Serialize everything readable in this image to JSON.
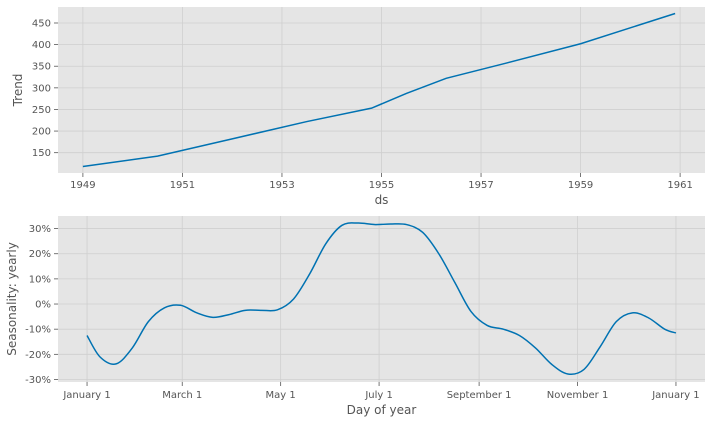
{
  "chart_data": [
    {
      "type": "line",
      "title": "",
      "xlabel": "ds",
      "ylabel": "Trend",
      "grid": true,
      "x_ticks": [
        "1949",
        "1951",
        "1953",
        "1955",
        "1957",
        "1959",
        "1961"
      ],
      "y_ticks": [
        "150",
        "200",
        "250",
        "300",
        "350",
        "400",
        "450"
      ],
      "xlim": [
        1948.5,
        1961.5
      ],
      "ylim": [
        103,
        487
      ],
      "line_color": "#0072B2",
      "background_color": "#E5E5E5",
      "series": [
        {
          "x": [
            1949.0,
            1950.5,
            1952.0,
            1953.5,
            1954.8,
            1955.5,
            1956.3,
            1957.5,
            1959.0,
            1960.9
          ],
          "y": [
            118,
            142,
            182,
            222,
            253,
            287,
            322,
            357,
            402,
            472
          ]
        }
      ]
    },
    {
      "type": "line",
      "title": "",
      "xlabel": "Day of year",
      "ylabel": "Seasonality: yearly",
      "grid": true,
      "x_ticks": [
        "January 1",
        "March 1",
        "May 1",
        "July 1",
        "September 1",
        "November 1",
        "January 1"
      ],
      "x_tick_days": [
        0,
        59,
        120,
        181,
        243,
        304,
        365
      ],
      "y_ticks": [
        "-30%",
        "-20%",
        "-10%",
        "0%",
        "10%",
        "20%",
        "30%"
      ],
      "xlim": [
        -18,
        383
      ],
      "ylim": [
        -31,
        35
      ],
      "line_color": "#0072B2",
      "background_color": "#E5E5E5",
      "series": [
        {
          "x": [
            0,
            8,
            18,
            28,
            38,
            48,
            58,
            68,
            78,
            88,
            98,
            108,
            118,
            128,
            138,
            148,
            158,
            168,
            178,
            188,
            198,
            208,
            218,
            228,
            238,
            248,
            258,
            268,
            278,
            288,
            298,
            308,
            318,
            328,
            338,
            348,
            358,
            365
          ],
          "y": [
            -12.5,
            -21,
            -23.8,
            -17.5,
            -7,
            -1.5,
            -0.5,
            -3.5,
            -5.3,
            -4.2,
            -2.5,
            -2.5,
            -2.3,
            2,
            12,
            24,
            31.3,
            32.2,
            31.6,
            31.8,
            31.6,
            28.5,
            20,
            8.5,
            -3,
            -8.5,
            -10,
            -12.5,
            -17.5,
            -24,
            -27.8,
            -26,
            -17,
            -7,
            -3.5,
            -5.5,
            -10,
            -11.5
          ]
        }
      ]
    }
  ]
}
